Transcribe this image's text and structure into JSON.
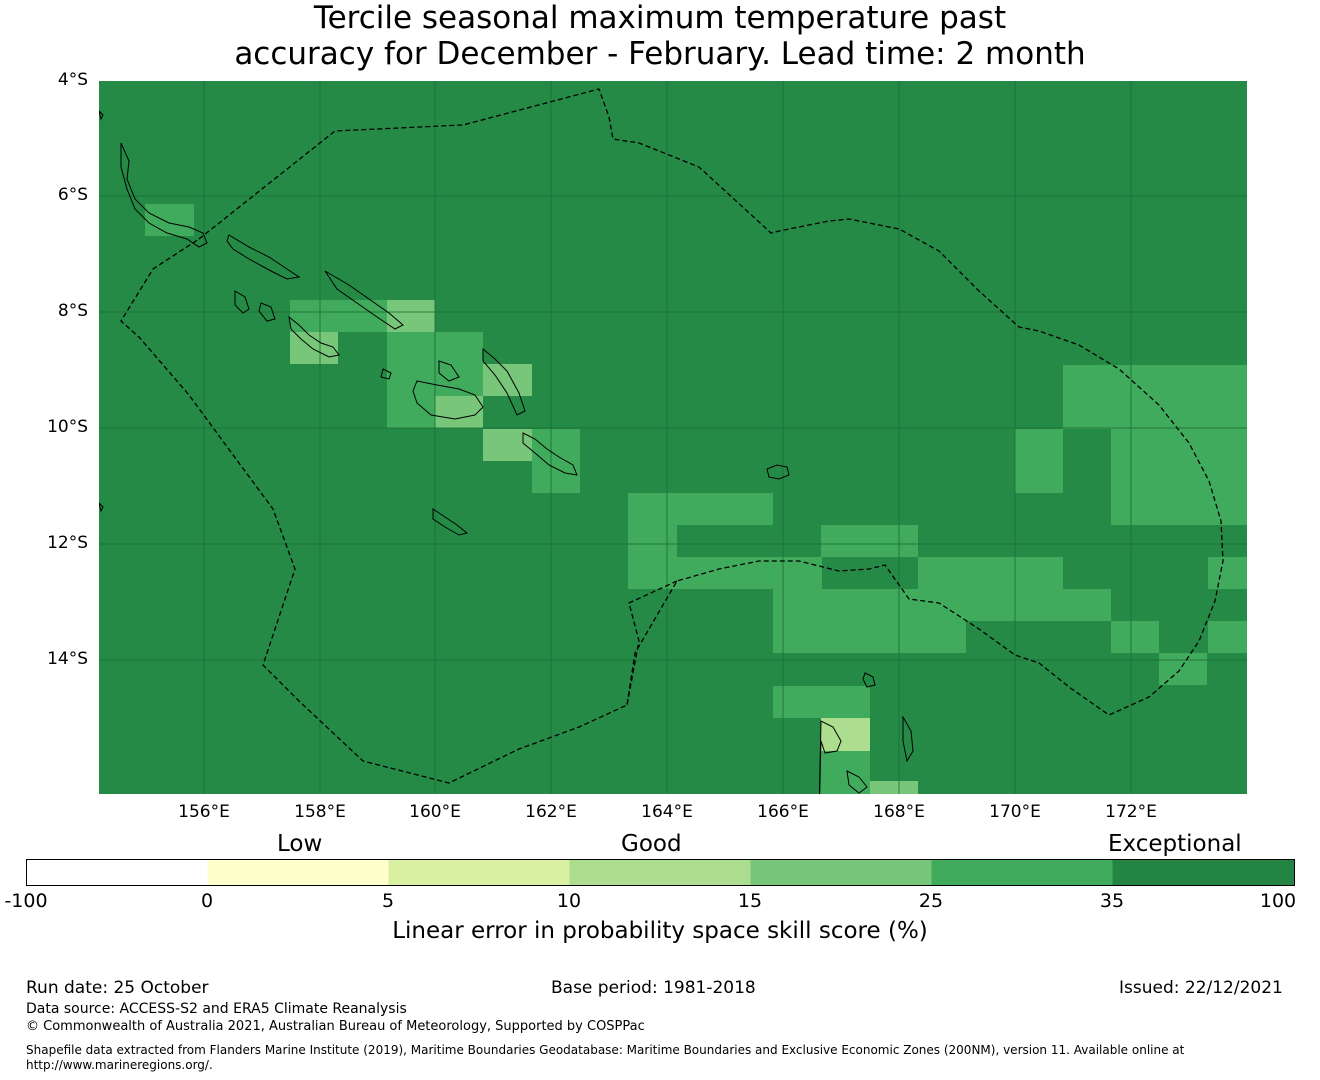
{
  "title_line1": "Tercile seasonal maximum temperature past",
  "title_line2": "accuracy for December - February. Lead time: 2 month",
  "map": {
    "lat_labels": [
      "4°S",
      "6°S",
      "8°S",
      "10°S",
      "12°S",
      "14°S"
    ],
    "lon_labels": [
      "156°E",
      "158°E",
      "160°E",
      "162°E",
      "164°E",
      "166°E",
      "168°E",
      "170°E",
      "172°E"
    ],
    "background_color": "#248a46",
    "land_color": "#248a46"
  },
  "colorbar": {
    "category_low": "Low",
    "category_good": "Good",
    "category_exceptional": "Exceptional",
    "ticks": [
      "-100",
      "0",
      "5",
      "10",
      "15",
      "25",
      "35",
      "100"
    ],
    "colors": [
      "#ffffff",
      "#ffffcc",
      "#d9f0a3",
      "#addd8e",
      "#78c679",
      "#41ab5d",
      "#238443"
    ],
    "title": "Linear error in probability space skill score (%)"
  },
  "footer": {
    "run_date": "Run date: 25 October",
    "base_period": "Base period: 1981-2018",
    "issued": "Issued: 22/12/2021",
    "data_source": "Data source: ACCESS-S2 and ERA5 Climate Reanalysis",
    "copyright": "© Commonwealth of Australia 2021, Australian Bureau of Meteorology, Supported by COSPPac",
    "shapefile_line1": "Shapefile data extracted from Flanders Marine Institute (2019), Maritime Boundaries Geodatabase: Maritime Boundaries and Exclusive Economic Zones (200NM), version 11. Available online at",
    "shapefile_line2": "http://www.marineregions.org/."
  }
}
